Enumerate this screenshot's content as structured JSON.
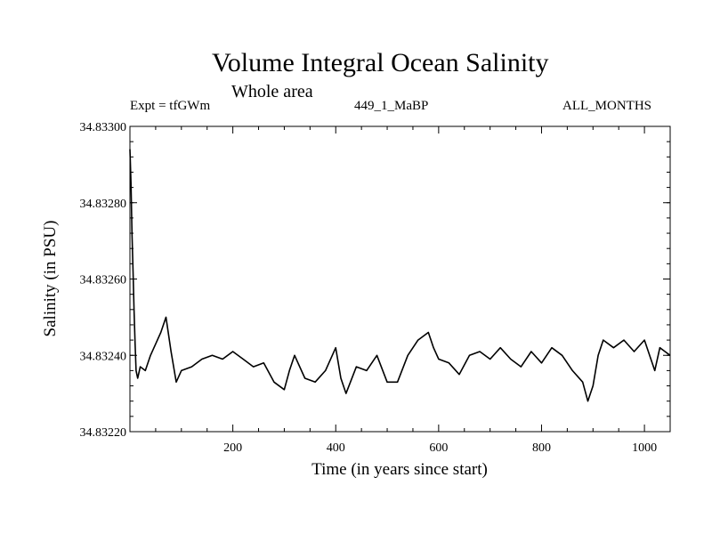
{
  "chart_data": {
    "type": "line",
    "title": "Volume Integral Ocean Salinity",
    "subtitle": "Whole area",
    "annotations": {
      "experiment": "Expt = tfGWm",
      "run": "449_1_MaBP",
      "period": "ALL_MONTHS"
    },
    "xlabel": "Time (in years since start)",
    "ylabel": "Salinity (in PSU)",
    "xlim": [
      0,
      1050
    ],
    "ylim": [
      34.8322,
      34.833
    ],
    "xticks": [
      200,
      400,
      600,
      800,
      1000
    ],
    "xtick_labels": [
      "200",
      "400",
      "600",
      "800",
      "1000"
    ],
    "yticks": [
      34.8322,
      34.8324,
      34.8326,
      34.8328,
      34.833
    ],
    "ytick_labels": [
      "34.83220",
      "34.83240",
      "34.83260",
      "34.83280",
      "34.83300"
    ],
    "grid": false,
    "series": [
      {
        "name": "Salinity",
        "x": [
          0,
          2,
          4,
          6,
          8,
          10,
          12,
          15,
          20,
          30,
          40,
          50,
          60,
          70,
          80,
          90,
          100,
          120,
          140,
          160,
          180,
          200,
          220,
          240,
          260,
          280,
          300,
          310,
          320,
          340,
          360,
          380,
          400,
          410,
          420,
          440,
          460,
          480,
          500,
          520,
          540,
          560,
          580,
          590,
          600,
          620,
          640,
          660,
          680,
          700,
          720,
          740,
          760,
          780,
          800,
          820,
          840,
          860,
          880,
          890,
          900,
          910,
          920,
          940,
          960,
          980,
          1000,
          1020,
          1030,
          1040,
          1050
        ],
        "values": [
          34.83294,
          34.83285,
          34.83272,
          34.83262,
          34.83252,
          34.83243,
          34.83236,
          34.83234,
          34.83237,
          34.83236,
          34.8324,
          34.83243,
          34.83246,
          34.8325,
          34.83241,
          34.83233,
          34.83236,
          34.83237,
          34.83239,
          34.8324,
          34.83239,
          34.83241,
          34.83239,
          34.83237,
          34.83238,
          34.83233,
          34.83231,
          34.83236,
          34.8324,
          34.83234,
          34.83233,
          34.83236,
          34.83242,
          34.83234,
          34.8323,
          34.83237,
          34.83236,
          34.8324,
          34.83233,
          34.83233,
          34.8324,
          34.83244,
          34.83246,
          34.83242,
          34.83239,
          34.83238,
          34.83235,
          34.8324,
          34.83241,
          34.83239,
          34.83242,
          34.83239,
          34.83237,
          34.83241,
          34.83238,
          34.83242,
          34.8324,
          34.83236,
          34.83233,
          34.83228,
          34.83232,
          34.8324,
          34.83244,
          34.83242,
          34.83244,
          34.83241,
          34.83244,
          34.83236,
          34.83242,
          34.83241,
          34.8324
        ]
      }
    ]
  }
}
